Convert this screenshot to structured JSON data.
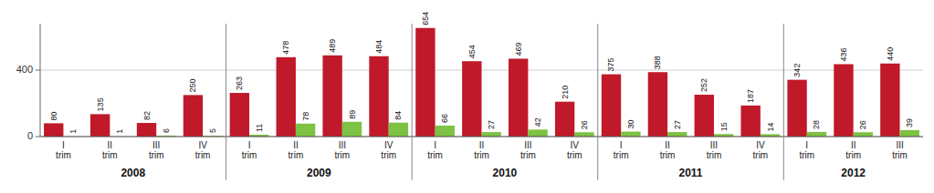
{
  "chart_data": {
    "type": "bar",
    "categories": [
      "I\ntrim",
      "II\ntrim",
      "III\ntrim",
      "IV\ntrim",
      "I\ntrim",
      "II\ntrim",
      "III\ntrim",
      "IV\ntrim",
      "I\ntrim",
      "II\ntrim",
      "III\ntrim",
      "IV\ntrim",
      "I\ntrim",
      "II\ntrim",
      "III\ntrim",
      "IV\ntrim",
      "I\ntrim",
      "II\ntrim",
      "III\ntrim"
    ],
    "groups": [
      {
        "label": "2008",
        "start": 0,
        "end": 3
      },
      {
        "label": "2009",
        "start": 4,
        "end": 7
      },
      {
        "label": "2010",
        "start": 8,
        "end": 11
      },
      {
        "label": "2011",
        "start": 12,
        "end": 15
      },
      {
        "label": "2012",
        "start": 16,
        "end": 18
      }
    ],
    "series": [
      {
        "color": "#C0192A",
        "values": [
          80,
          135,
          82,
          250,
          263,
          478,
          489,
          484,
          654,
          454,
          469,
          210,
          375,
          388,
          252,
          187,
          342,
          436,
          440
        ]
      },
      {
        "color": "#7DC242",
        "values": [
          1,
          1,
          6,
          5,
          11,
          78,
          89,
          84,
          66,
          27,
          42,
          26,
          30,
          27,
          15,
          14,
          28,
          26,
          39
        ]
      }
    ],
    "ylim": [
      0,
      680
    ],
    "yticks": [
      0,
      400
    ],
    "grid": true,
    "data_labels": true
  }
}
